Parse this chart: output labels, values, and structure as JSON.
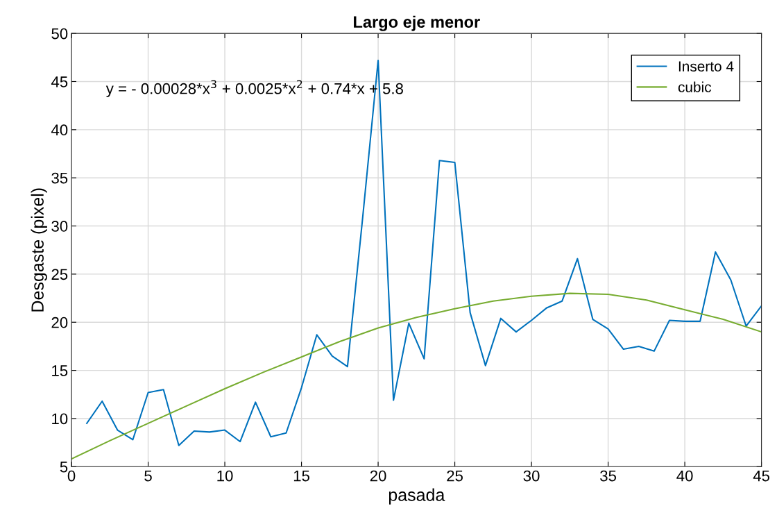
{
  "chart_data": {
    "type": "line",
    "title": "Largo eje menor",
    "xlabel": "pasada",
    "ylabel": "Desgaste (pixel)",
    "xlim": [
      0,
      45
    ],
    "ylim": [
      5,
      50
    ],
    "xticks": [
      0,
      5,
      10,
      15,
      20,
      25,
      30,
      35,
      40,
      45
    ],
    "yticks": [
      5,
      10,
      15,
      20,
      25,
      30,
      35,
      40,
      45,
      50
    ],
    "grid": true,
    "legend": "top right",
    "annotations": [
      "y = - 0.00028*x$^{3}$ + 0.0025*x$^{2}$ + 0.74*x + 5.8"
    ],
    "series": [
      {
        "name": "Inserto 4",
        "color": "#0072bd",
        "x": [
          1,
          2,
          3,
          4,
          5,
          6,
          7,
          8,
          9,
          10,
          11,
          12,
          13,
          14,
          15,
          16,
          17,
          18,
          19,
          20,
          21,
          22,
          23,
          24,
          25,
          26,
          27,
          28,
          29,
          30,
          31,
          32,
          33,
          34,
          35,
          36,
          37,
          38,
          39,
          40,
          41,
          42,
          43,
          44,
          45
        ],
        "values": [
          9.5,
          11.8,
          8.8,
          7.8,
          12.7,
          13.0,
          7.2,
          8.7,
          8.6,
          8.8,
          7.6,
          11.7,
          8.1,
          8.5,
          13.2,
          18.7,
          16.5,
          15.4,
          31,
          47.2,
          11.9,
          19.9,
          16.2,
          36.8,
          36.6,
          21,
          15.5,
          20.4,
          19,
          20.2,
          21.5,
          22.2,
          26.6,
          20.3,
          19.3,
          17.2,
          17.5,
          17,
          20.2,
          20.1,
          20.1,
          27.3,
          24.4,
          19.6,
          21.7
        ]
      },
      {
        "name": "cubic",
        "color": "#77ac30",
        "x": [
          0,
          2.5,
          5,
          7.5,
          10,
          12.5,
          15,
          17.5,
          20,
          22.5,
          25,
          27.5,
          30,
          32.5,
          35,
          37.5,
          40,
          42.5,
          45
        ],
        "values": [
          5.8,
          7.7,
          9.5,
          11.3,
          13.1,
          14.8,
          16.4,
          18.0,
          19.4,
          20.5,
          21.4,
          22.2,
          22.7,
          23.0,
          22.9,
          22.3,
          21.3,
          20.3,
          19.0
        ]
      }
    ]
  }
}
